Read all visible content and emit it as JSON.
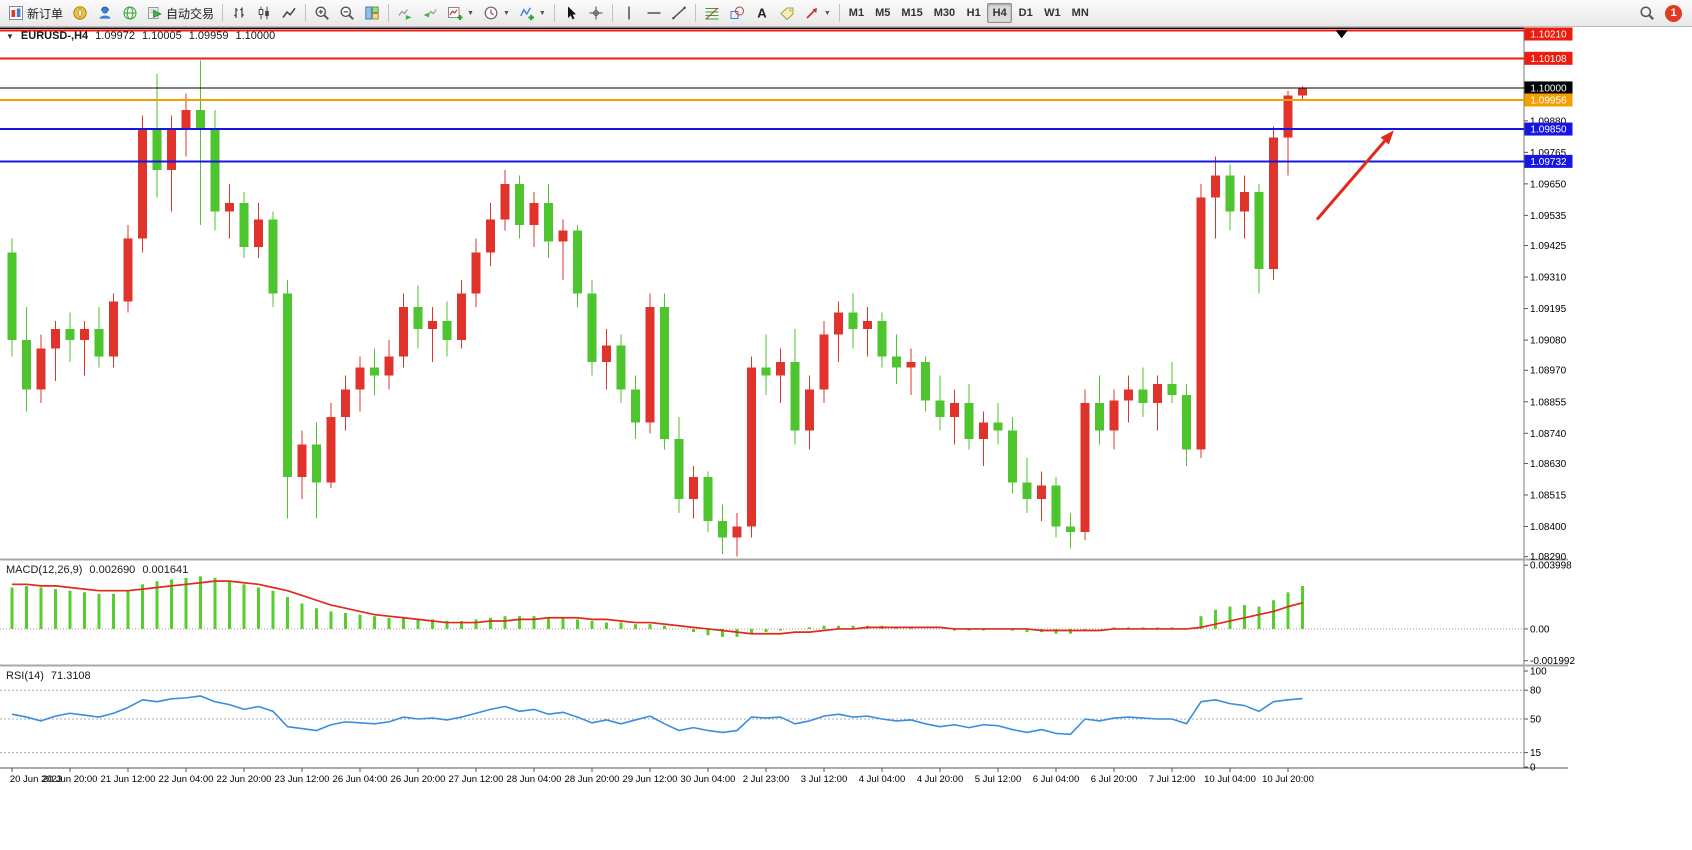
{
  "toolbar": {
    "groups": [
      [
        {
          "icon": "new-order",
          "label": "新订单"
        },
        {
          "icon": "compass"
        },
        {
          "icon": "operator"
        },
        {
          "icon": "globe"
        },
        {
          "icon": "autotrade",
          "label": "自动交易"
        }
      ],
      [
        {
          "icon": "bar-chart"
        },
        {
          "icon": "candle-chart"
        },
        {
          "icon": "line-chart"
        }
      ],
      [
        {
          "icon": "zoom-in"
        },
        {
          "icon": "zoom-out"
        },
        {
          "icon": "tile-windows"
        }
      ],
      [
        {
          "icon": "auto-scroll"
        },
        {
          "icon": "chart-shift"
        },
        {
          "icon": "new-chart",
          "dropdown": true
        },
        {
          "icon": "periods",
          "dropdown": true
        },
        {
          "icon": "indicators",
          "dropdown": true
        }
      ],
      [
        {
          "icon": "cursor"
        },
        {
          "icon": "crosshair"
        }
      ],
      [
        {
          "icon": "vline"
        },
        {
          "icon": "hline"
        },
        {
          "icon": "trendline"
        }
      ],
      [
        {
          "icon": "fibonacci"
        },
        {
          "icon": "shapes"
        },
        {
          "icon": "text-tool"
        },
        {
          "icon": "label-tool"
        },
        {
          "icon": "arrows",
          "dropdown": true
        }
      ]
    ],
    "timeframes": [
      "M1",
      "M5",
      "M15",
      "M30",
      "H1",
      "H4",
      "D1",
      "W1",
      "MN"
    ],
    "active_timeframe": "H4",
    "notification_count": "1"
  },
  "chart_data": {
    "type": "candlestick",
    "symbol": "EURUSD-",
    "period": "H4",
    "ohlc": {
      "open": "1.09972",
      "high": "1.10005",
      "low": "1.09959",
      "close": "1.10000"
    },
    "up_color": "#e0332c",
    "down_color": "#4ec52e",
    "price_axis": {
      "min": 1.08285,
      "max": 1.10215,
      "labels": [
        {
          "text": "1.10210",
          "badge": "#ee1c0e"
        },
        {
          "text": "1.10108",
          "badge": "#ee1c0e"
        },
        {
          "text": "1.10000",
          "badge": "#000000"
        },
        {
          "text": "1.09956",
          "badge": "#f5a000"
        },
        {
          "text": "1.09880"
        },
        {
          "text": "1.09850",
          "badge": "#1616e0"
        },
        {
          "text": "1.09765"
        },
        {
          "text": "1.09732",
          "badge": "#1616e0"
        },
        {
          "text": "1.09650"
        },
        {
          "text": "1.09535"
        },
        {
          "text": "1.09425"
        },
        {
          "text": "1.09310"
        },
        {
          "text": "1.09195"
        },
        {
          "text": "1.09080"
        },
        {
          "text": "1.08970"
        },
        {
          "text": "1.08855"
        },
        {
          "text": "1.08740"
        },
        {
          "text": "1.08630"
        },
        {
          "text": "1.08515"
        },
        {
          "text": "1.08400"
        },
        {
          "text": "1.08290"
        }
      ]
    },
    "time_labels": [
      "20 Jun 2023",
      "20 Jun 20:00",
      "21 Jun 12:00",
      "22 Jun 04:00",
      "22 Jun 20:00",
      "23 Jun 12:00",
      "26 Jun 04:00",
      "26 Jun 20:00",
      "27 Jun 12:00",
      "28 Jun 04:00",
      "28 Jun 20:00",
      "29 Jun 12:00",
      "30 Jun 04:00",
      "2 Jul 23:00",
      "3 Jul 12:00",
      "4 Jul 04:00",
      "4 Jul 20:00",
      "5 Jul 12:00",
      "6 Jul 04:00",
      "6 Jul 20:00",
      "7 Jul 12:00",
      "10 Jul 04:00",
      "10 Jul 20:00"
    ],
    "candles": [
      [
        1.094,
        1.0945,
        1.0902,
        1.0908
      ],
      [
        1.0908,
        1.092,
        1.0882,
        1.089
      ],
      [
        1.089,
        1.091,
        1.0885,
        1.0905
      ],
      [
        1.0905,
        1.0915,
        1.0893,
        1.0912
      ],
      [
        1.0912,
        1.0918,
        1.09,
        1.0908
      ],
      [
        1.0908,
        1.0915,
        1.0895,
        1.0912
      ],
      [
        1.0912,
        1.092,
        1.0898,
        1.0902
      ],
      [
        1.0902,
        1.0925,
        1.0898,
        1.0922
      ],
      [
        1.0922,
        1.095,
        1.0918,
        1.0945
      ],
      [
        1.0945,
        1.099,
        1.094,
        1.0985
      ],
      [
        1.0985,
        1.1005,
        1.096,
        1.097
      ],
      [
        1.097,
        1.099,
        1.0955,
        1.0985
      ],
      [
        1.0985,
        1.0998,
        1.0975,
        1.0992
      ],
      [
        1.0992,
        1.101,
        1.095,
        1.0985
      ],
      [
        1.0985,
        1.0992,
        1.0948,
        1.0955
      ],
      [
        1.0955,
        1.0965,
        1.0945,
        1.0958
      ],
      [
        1.0958,
        1.0962,
        1.0938,
        1.0942
      ],
      [
        1.0942,
        1.0958,
        1.0938,
        1.0952
      ],
      [
        1.0952,
        1.0955,
        1.092,
        1.0925
      ],
      [
        1.0925,
        1.093,
        1.0843,
        1.0858
      ],
      [
        1.0858,
        1.0875,
        1.085,
        1.087
      ],
      [
        1.087,
        1.0878,
        1.0843,
        1.0856
      ],
      [
        1.0856,
        1.0885,
        1.0854,
        1.088
      ],
      [
        1.088,
        1.0895,
        1.0875,
        1.089
      ],
      [
        1.089,
        1.0902,
        1.0882,
        1.0898
      ],
      [
        1.0898,
        1.0905,
        1.0888,
        1.0895
      ],
      [
        1.0895,
        1.0908,
        1.089,
        1.0902
      ],
      [
        1.0902,
        1.0925,
        1.0898,
        1.092
      ],
      [
        1.092,
        1.0928,
        1.0905,
        1.0912
      ],
      [
        1.0912,
        1.092,
        1.09,
        1.0915
      ],
      [
        1.0915,
        1.0922,
        1.0902,
        1.0908
      ],
      [
        1.0908,
        1.093,
        1.0905,
        1.0925
      ],
      [
        1.0925,
        1.0945,
        1.092,
        1.094
      ],
      [
        1.094,
        1.0958,
        1.0935,
        1.0952
      ],
      [
        1.0952,
        1.097,
        1.0948,
        1.0965
      ],
      [
        1.0965,
        1.0968,
        1.0945,
        1.095
      ],
      [
        1.095,
        1.0962,
        1.0942,
        1.0958
      ],
      [
        1.0958,
        1.0965,
        1.0938,
        1.0944
      ],
      [
        1.0944,
        1.0952,
        1.093,
        1.0948
      ],
      [
        1.0948,
        1.095,
        1.092,
        1.0925
      ],
      [
        1.0925,
        1.093,
        1.0895,
        1.09
      ],
      [
        1.09,
        1.0912,
        1.089,
        1.0906
      ],
      [
        1.0906,
        1.091,
        1.0885,
        1.089
      ],
      [
        1.089,
        1.0895,
        1.0872,
        1.0878
      ],
      [
        1.0878,
        1.0925,
        1.0874,
        1.092
      ],
      [
        1.092,
        1.0925,
        1.0868,
        1.0872
      ],
      [
        1.0872,
        1.088,
        1.0845,
        1.085
      ],
      [
        1.085,
        1.0862,
        1.0843,
        1.0858
      ],
      [
        1.0858,
        1.086,
        1.0838,
        1.0842
      ],
      [
        1.0842,
        1.0848,
        1.083,
        1.0836
      ],
      [
        1.0836,
        1.0845,
        1.0829,
        1.084
      ],
      [
        1.084,
        1.0902,
        1.0836,
        1.0898
      ],
      [
        1.0898,
        1.091,
        1.0888,
        1.0895
      ],
      [
        1.0895,
        1.0905,
        1.0885,
        1.09
      ],
      [
        1.09,
        1.0912,
        1.087,
        1.0875
      ],
      [
        1.0875,
        1.0895,
        1.0868,
        1.089
      ],
      [
        1.089,
        1.0915,
        1.0885,
        1.091
      ],
      [
        1.091,
        1.0922,
        1.09,
        1.0918
      ],
      [
        1.0918,
        1.0925,
        1.0905,
        1.0912
      ],
      [
        1.0912,
        1.092,
        1.0902,
        1.0915
      ],
      [
        1.0915,
        1.0918,
        1.0898,
        1.0902
      ],
      [
        1.0902,
        1.091,
        1.0892,
        1.0898
      ],
      [
        1.0898,
        1.0905,
        1.0888,
        1.09
      ],
      [
        1.09,
        1.0902,
        1.0882,
        1.0886
      ],
      [
        1.0886,
        1.0895,
        1.0875,
        1.088
      ],
      [
        1.088,
        1.089,
        1.087,
        1.0885
      ],
      [
        1.0885,
        1.0892,
        1.0868,
        1.0872
      ],
      [
        1.0872,
        1.0882,
        1.0862,
        1.0878
      ],
      [
        1.0878,
        1.0885,
        1.087,
        1.0875
      ],
      [
        1.0875,
        1.088,
        1.0852,
        1.0856
      ],
      [
        1.0856,
        1.0865,
        1.0845,
        1.085
      ],
      [
        1.085,
        1.086,
        1.0842,
        1.0855
      ],
      [
        1.0855,
        1.0858,
        1.0836,
        1.084
      ],
      [
        1.084,
        1.0845,
        1.0832,
        1.0838
      ],
      [
        1.0838,
        1.089,
        1.0835,
        1.0885
      ],
      [
        1.0885,
        1.0895,
        1.087,
        1.0875
      ],
      [
        1.0875,
        1.089,
        1.0868,
        1.0886
      ],
      [
        1.0886,
        1.0895,
        1.0878,
        1.089
      ],
      [
        1.089,
        1.0898,
        1.088,
        1.0885
      ],
      [
        1.0885,
        1.0895,
        1.0875,
        1.0892
      ],
      [
        1.0892,
        1.09,
        1.0885,
        1.0888
      ],
      [
        1.0888,
        1.0892,
        1.0862,
        1.0868
      ],
      [
        1.0868,
        1.0965,
        1.0865,
        1.096
      ],
      [
        1.096,
        1.0975,
        1.0945,
        1.0968
      ],
      [
        1.0968,
        1.0972,
        1.0948,
        1.0955
      ],
      [
        1.0955,
        1.0968,
        1.0945,
        1.0962
      ],
      [
        1.0962,
        1.0965,
        1.0925,
        1.0934
      ],
      [
        1.0934,
        1.0986,
        1.093,
        1.0982
      ],
      [
        1.0982,
        1.0999,
        1.0968,
        1.09972
      ],
      [
        1.09972,
        1.10005,
        1.09959,
        1.1
      ]
    ],
    "hlines": [
      {
        "price": 1.1021,
        "color": "#ee1c0e",
        "width": 2
      },
      {
        "price": 1.10108,
        "color": "#ee1c0e",
        "width": 2
      },
      {
        "price": 1.1,
        "color": "#000000",
        "width": 1
      },
      {
        "price": 1.09956,
        "color": "#f5a000",
        "width": 2
      },
      {
        "price": 1.0985,
        "color": "#1616e0",
        "width": 2
      },
      {
        "price": 1.09732,
        "color": "#1616e0",
        "width": 2
      }
    ],
    "annotation": {
      "arrow": {
        "bar_start": 90,
        "price_start": 1.0952,
        "bar_end": 95.3,
        "price_end": 1.09845,
        "color": "#e02a1c"
      },
      "top_marker": {
        "bar": 91.7,
        "price": 1.1021,
        "color": "#000000"
      }
    },
    "macd": {
      "label": "MACD(12,26,9)",
      "value_main": "0.002690",
      "value_signal": "0.001641",
      "axis_labels": [
        "0.003998",
        "0.00",
        "-0.001992"
      ],
      "range": [
        -0.0022,
        0.0042
      ],
      "hist_color": "#55ce2e",
      "signal_color": "#e02a1c",
      "histogram": [
        0.0026,
        0.0027,
        0.0026,
        0.0025,
        0.0024,
        0.0023,
        0.0022,
        0.0022,
        0.0024,
        0.0028,
        0.003,
        0.0031,
        0.0032,
        0.0033,
        0.0032,
        0.003,
        0.0028,
        0.0026,
        0.0024,
        0.002,
        0.0016,
        0.0013,
        0.0011,
        0.001,
        0.0009,
        0.0008,
        0.0007,
        0.0007,
        0.0006,
        0.0006,
        0.0005,
        0.0005,
        0.0006,
        0.0007,
        0.0008,
        0.0008,
        0.0008,
        0.0007,
        0.0007,
        0.0006,
        0.0005,
        0.0004,
        0.0004,
        0.0003,
        0.0003,
        0.0002,
        0.0,
        -0.0002,
        -0.0004,
        -0.0005,
        -0.0005,
        -0.0003,
        -0.0002,
        -0.0001,
        0.0,
        0.0001,
        0.0002,
        0.0002,
        0.0002,
        0.0002,
        0.0002,
        0.0001,
        0.0001,
        0.0,
        0.0,
        -0.0001,
        -0.0001,
        -0.0001,
        0.0,
        -0.0001,
        -0.0002,
        -0.0002,
        -0.0003,
        -0.0003,
        -0.0001,
        0.0,
        0.0001,
        0.0001,
        0.0001,
        0.0001,
        0.0001,
        0.0,
        0.0008,
        0.0012,
        0.0014,
        0.0015,
        0.0014,
        0.0018,
        0.0023,
        0.00269
      ],
      "signal": [
        0.0028,
        0.0028,
        0.0027,
        0.0027,
        0.0026,
        0.0025,
        0.0024,
        0.0024,
        0.0024,
        0.0025,
        0.0026,
        0.0027,
        0.0028,
        0.0029,
        0.003,
        0.003,
        0.0029,
        0.0028,
        0.0026,
        0.0024,
        0.0021,
        0.0018,
        0.0015,
        0.0013,
        0.0011,
        0.0009,
        0.0008,
        0.0007,
        0.0006,
        0.0005,
        0.0004,
        0.0004,
        0.0004,
        0.0005,
        0.0005,
        0.0006,
        0.0006,
        0.0007,
        0.0007,
        0.0007,
        0.0006,
        0.0006,
        0.0005,
        0.0004,
        0.0004,
        0.0003,
        0.0002,
        0.0001,
        0.0,
        -0.0001,
        -0.0002,
        -0.0003,
        -0.0003,
        -0.0003,
        -0.0002,
        -0.0002,
        -0.0001,
        0.0,
        0.0,
        0.0001,
        0.0001,
        0.0001,
        0.0001,
        0.0001,
        0.0001,
        0.0,
        0.0,
        0.0,
        0.0,
        0.0,
        0.0,
        -0.0001,
        -0.0001,
        -0.0001,
        -0.0001,
        -0.0001,
        0.0,
        0.0,
        0.0,
        0.0,
        0.0,
        0.0,
        0.0001,
        0.0003,
        0.0005,
        0.0007,
        0.0009,
        0.0011,
        0.0014,
        0.001641
      ]
    },
    "rsi": {
      "label": "RSI(14)",
      "value": "71.3108",
      "axis_labels": [
        "100",
        "80",
        "50",
        "15",
        "0"
      ],
      "levels": [
        80,
        50,
        15
      ],
      "color": "#3a8ede",
      "values": [
        55,
        52,
        48,
        53,
        56,
        54,
        52,
        56,
        62,
        70,
        68,
        71,
        72,
        74,
        68,
        65,
        60,
        63,
        58,
        42,
        40,
        38,
        44,
        47,
        46,
        45,
        47,
        52,
        50,
        51,
        49,
        52,
        56,
        60,
        63,
        58,
        60,
        55,
        57,
        52,
        46,
        49,
        45,
        49,
        53,
        45,
        38,
        41,
        38,
        36,
        38,
        52,
        51,
        52,
        45,
        48,
        53,
        55,
        52,
        53,
        50,
        48,
        49,
        45,
        42,
        44,
        41,
        44,
        43,
        39,
        36,
        39,
        35,
        34,
        50,
        48,
        51,
        52,
        51,
        50,
        50,
        45,
        68,
        70,
        66,
        64,
        58,
        68,
        70,
        71.31
      ]
    }
  }
}
